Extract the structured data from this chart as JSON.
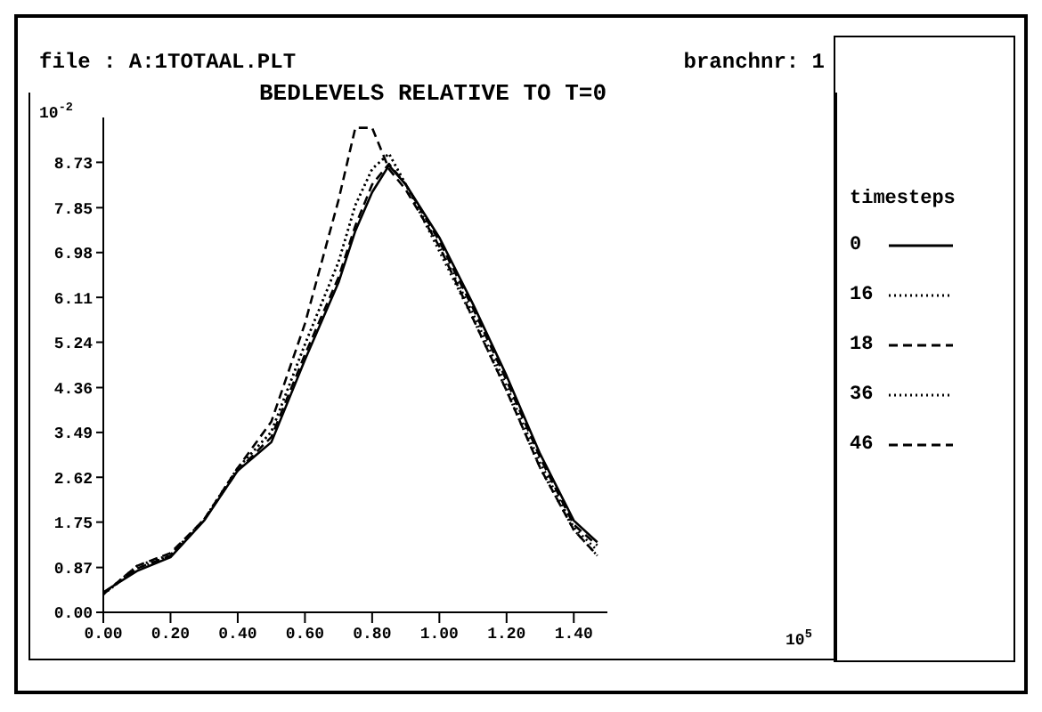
{
  "chart_data": {
    "type": "line",
    "title": "BEDLEVELS RELATIVE TO T=0",
    "legend_title": "timesteps",
    "legend": "right",
    "marker": "none",
    "annotations": [
      "file : A:1TOTAAL.PLT",
      "branchnr: 1",
      "10$^{-2}$",
      "10$^{5}$"
    ],
    "x": [
      0,
      0.1,
      0.2,
      0.3,
      0.4,
      0.5,
      0.6,
      0.7,
      0.75,
      0.8,
      0.85,
      0.9,
      1.0,
      1.1,
      1.2,
      1.3,
      1.4,
      1.47
    ],
    "xlim": [
      0,
      1.5
    ],
    "xticks": [
      {
        "value": 0,
        "label": "0.00"
      },
      {
        "value": 0.2,
        "label": "0.20"
      },
      {
        "value": 0.4,
        "label": "0.40"
      },
      {
        "value": 0.6,
        "label": "0.60"
      },
      {
        "value": 0.8,
        "label": "0.80"
      },
      {
        "value": 1,
        "label": "1.00"
      },
      {
        "value": 1.2,
        "label": "1.20"
      },
      {
        "value": 1.4,
        "label": "1.40"
      }
    ],
    "ylim": [
      0,
      9.6
    ],
    "yticks": [
      {
        "value": 0,
        "label": "0.00"
      },
      0.87,
      1.75,
      2.62,
      3.49,
      4.36,
      5.24,
      6.11,
      6.98,
      7.85,
      8.73
    ],
    "series": [
      {
        "name": "0",
        "color": "#000000",
        "line_style": "solid",
        "values": [
          0.39,
          0.8,
          1.07,
          1.78,
          2.75,
          3.3,
          4.9,
          6.4,
          7.4,
          8.15,
          8.67,
          8.3,
          7.27,
          5.98,
          4.59,
          3.07,
          1.78,
          1.36
        ]
      },
      {
        "name": "16",
        "color": "#000000",
        "line_style": "dotted",
        "values": [
          0.35,
          0.85,
          1.1,
          1.8,
          2.8,
          3.5,
          5.2,
          6.8,
          7.9,
          8.6,
          8.9,
          8.3,
          7.1,
          5.8,
          4.4,
          2.9,
          1.65,
          1.2
        ]
      },
      {
        "name": "18",
        "color": "#000000",
        "line_style": "dashed",
        "values": [
          0.37,
          0.85,
          1.1,
          1.8,
          2.75,
          3.4,
          5.0,
          6.5,
          7.5,
          8.3,
          8.7,
          8.3,
          7.2,
          5.9,
          4.5,
          3.0,
          1.7,
          1.3
        ]
      },
      {
        "name": "36",
        "color": "#000000",
        "line_style": "dotted",
        "values": [
          0.35,
          0.9,
          1.12,
          1.8,
          2.8,
          3.5,
          5.2,
          6.8,
          7.9,
          8.6,
          8.9,
          8.3,
          7.0,
          5.7,
          4.3,
          2.8,
          1.6,
          1.1
        ]
      },
      {
        "name": "46",
        "color": "#000000",
        "line_style": "dashed",
        "values": [
          0.35,
          0.9,
          1.15,
          1.8,
          2.8,
          3.7,
          5.6,
          8.0,
          9.4,
          9.4,
          8.6,
          8.2,
          7.1,
          5.7,
          4.3,
          2.8,
          1.6,
          1.1
        ]
      }
    ]
  }
}
